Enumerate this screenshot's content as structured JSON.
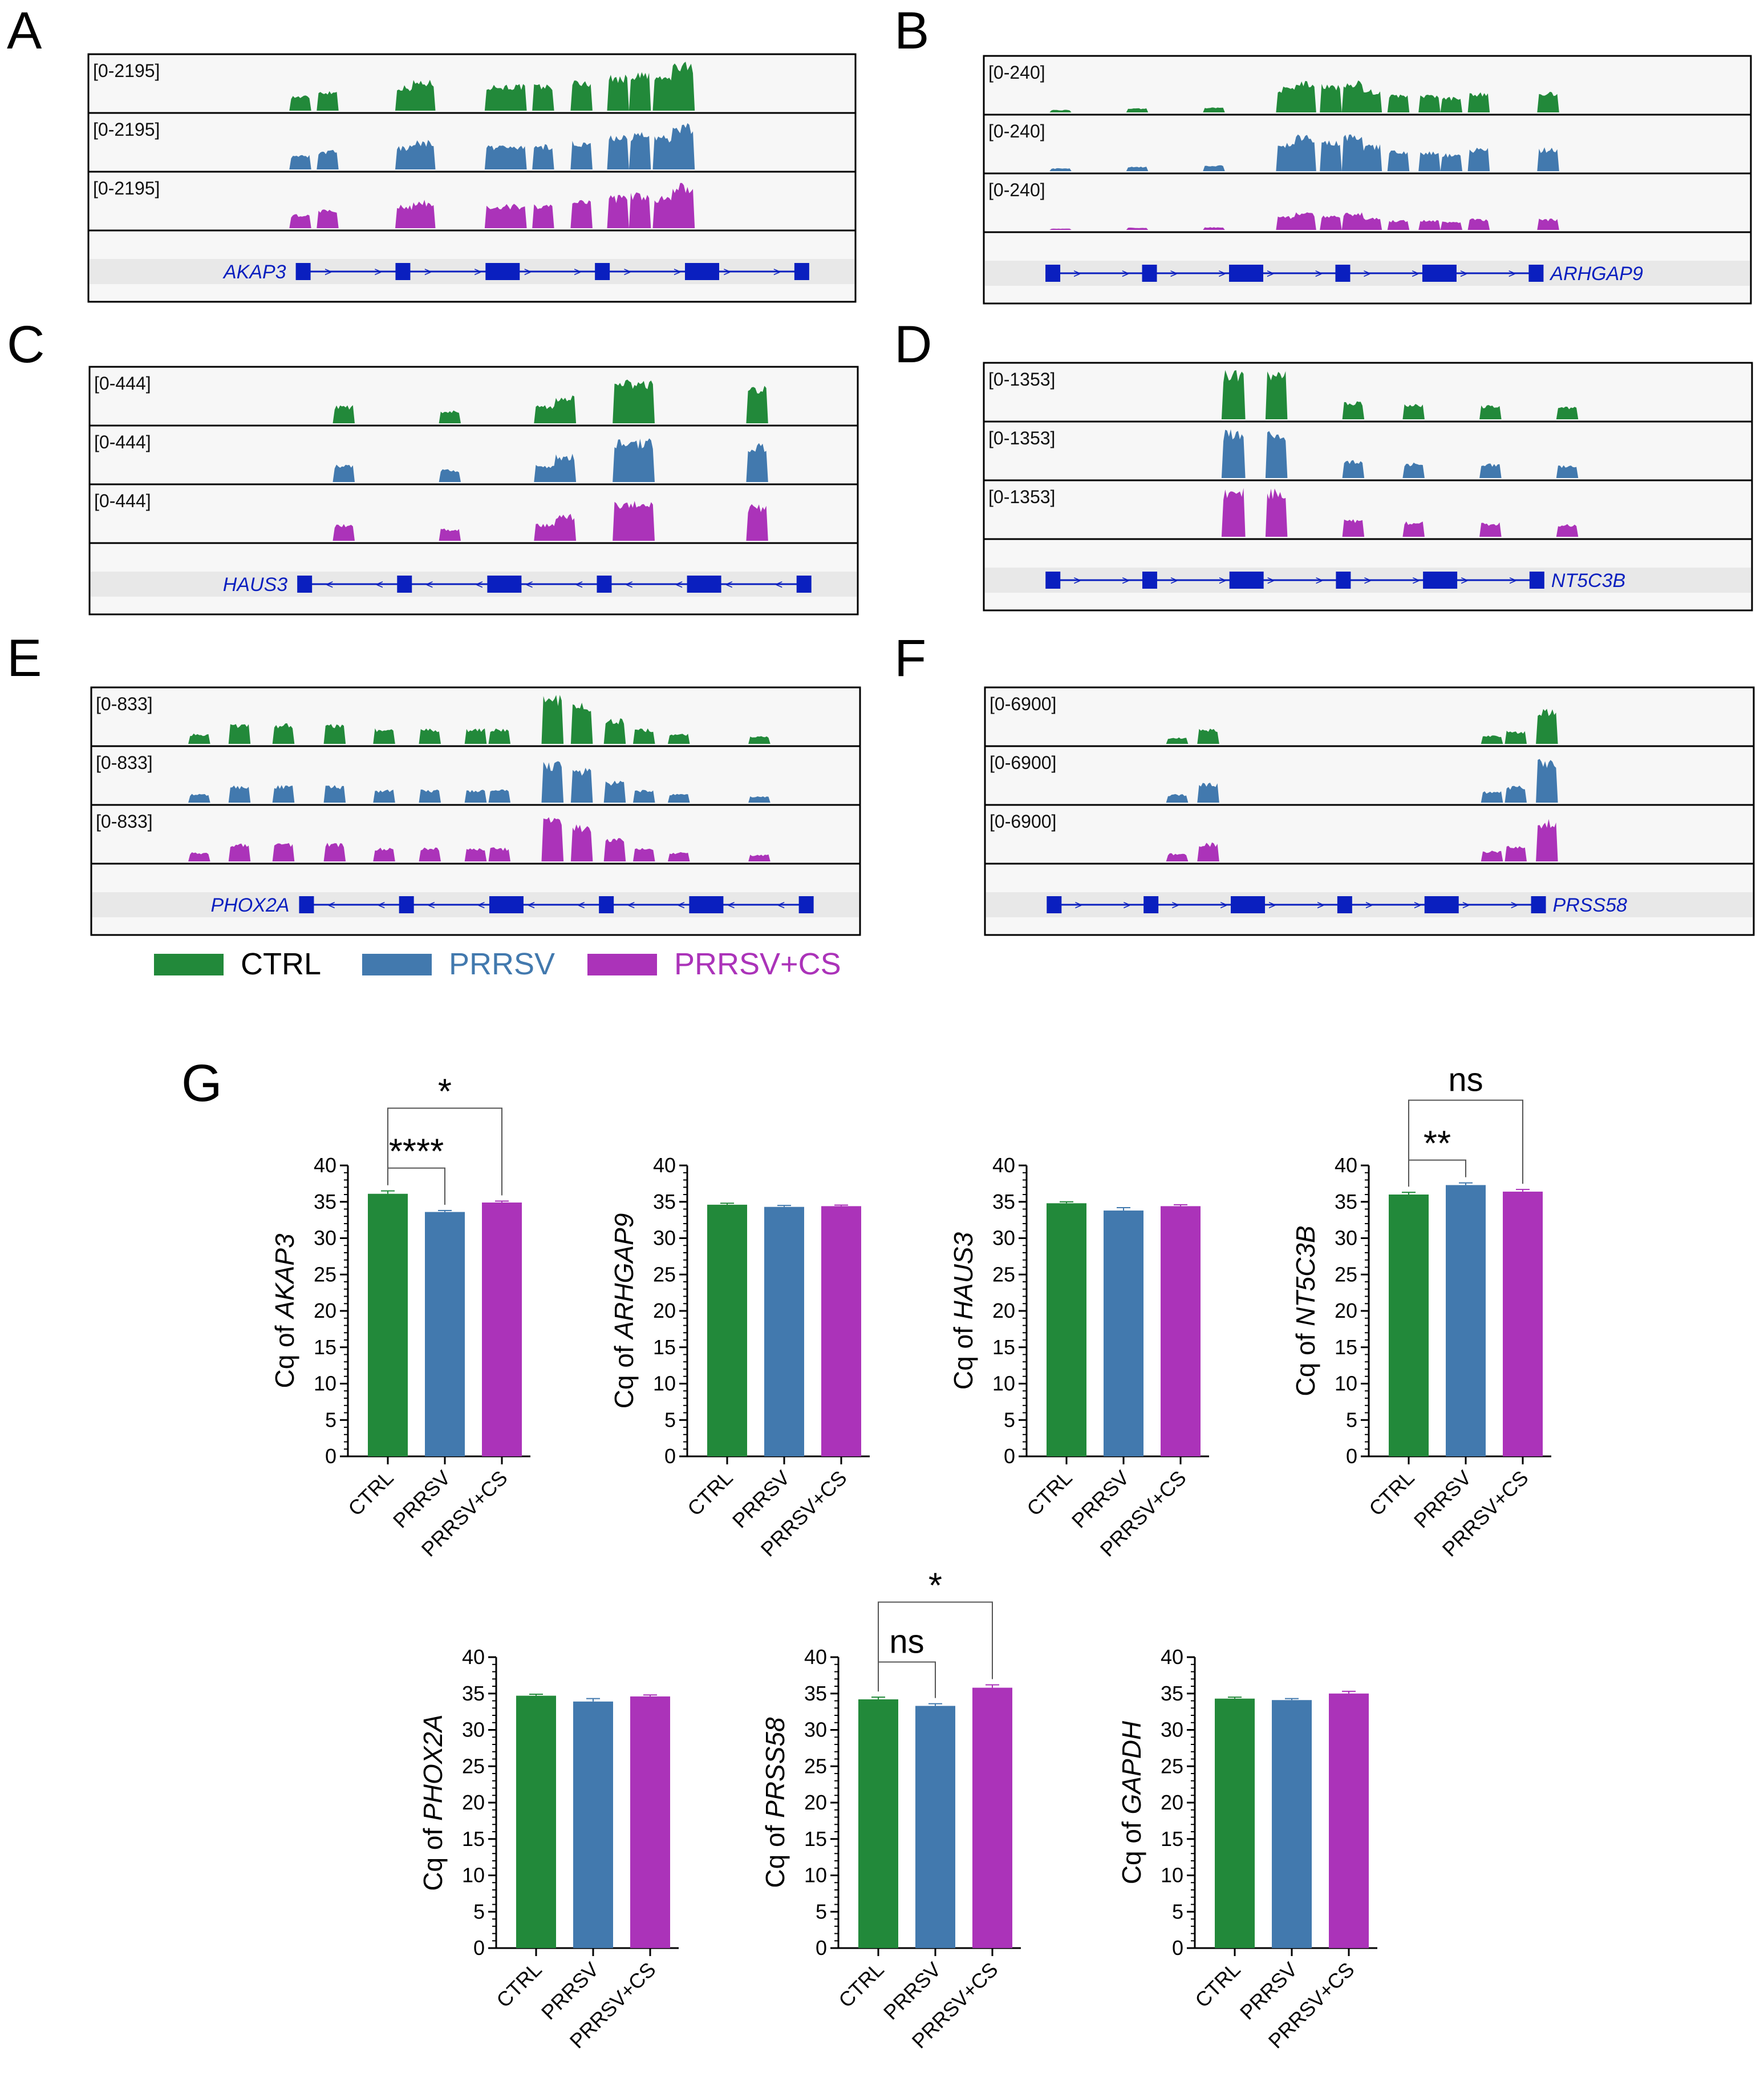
{
  "colors": {
    "CTRL": "#22893a",
    "PRRSV": "#4279ae",
    "PRRSV+CS": "#ab33b9",
    "gene": "#0a1fbf",
    "track_bg": "#f7f7f7",
    "gene_bg": "#e8e8e8"
  },
  "legend": [
    {
      "label": "CTRL",
      "color": "#22893a"
    },
    {
      "label": "PRRSV",
      "color": "#4279ae"
    },
    {
      "label": "PRRSV+CS",
      "color": "#ab33b9"
    }
  ],
  "chart_data": [
    {
      "panel": "A",
      "type": "area",
      "gene": "AKAP3",
      "range_label": "[0-2195]",
      "range": [
        0,
        2195
      ],
      "strand": "+",
      "gene_label_side": "left",
      "peaks": [
        [
          0.276,
          0.3
        ],
        [
          0.311,
          0.4
        ],
        [
          0.414,
          0.5
        ],
        [
          0.437,
          0.6
        ],
        [
          0.531,
          0.52
        ],
        [
          0.556,
          0.52
        ],
        [
          0.593,
          0.52
        ],
        [
          0.643,
          0.6
        ],
        [
          0.69,
          0.7
        ],
        [
          0.72,
          0.76
        ],
        [
          0.75,
          0.7
        ],
        [
          0.775,
          0.95
        ]
      ],
      "tracks": [
        {
          "sample": "CTRL",
          "label_text": "[0-2195]",
          "peak_scale": 1.0
        },
        {
          "sample": "PRRSV",
          "label_text": "[0-2195]",
          "peak_scale": 0.95
        },
        {
          "sample": "PRRSV+CS",
          "label_text": "[0-2195]",
          "peak_scale": 0.92
        }
      ]
    },
    {
      "panel": "B",
      "type": "area",
      "gene": "ARHGAP9",
      "range_label": "[0-240]",
      "range": [
        0,
        240
      ],
      "strand": "+",
      "gene_label_side": "right",
      "peaks": [
        [
          0.1,
          0.05
        ],
        [
          0.2,
          0.08
        ],
        [
          0.3,
          0.1
        ],
        [
          0.395,
          0.5
        ],
        [
          0.42,
          0.62
        ],
        [
          0.452,
          0.55
        ],
        [
          0.482,
          0.62
        ],
        [
          0.505,
          0.45
        ],
        [
          0.54,
          0.35
        ],
        [
          0.58,
          0.35
        ],
        [
          0.61,
          0.3
        ],
        [
          0.645,
          0.4
        ],
        [
          0.735,
          0.4
        ]
      ],
      "tracks": [
        {
          "sample": "CTRL",
          "label_text": "[0-240]",
          "peak_scale": 1.0
        },
        {
          "sample": "PRRSV",
          "label_text": "[0-240]",
          "peak_scale": 1.15
        },
        {
          "sample": "PRRSV+CS",
          "label_text": "[0-240]",
          "peak_scale": 0.55
        }
      ]
    },
    {
      "panel": "C",
      "type": "area",
      "gene": "HAUS3",
      "range_label": "[0-444]",
      "range": [
        0,
        444
      ],
      "strand": "-",
      "gene_label_side": "left",
      "peaks": [
        [
          0.331,
          0.35
        ],
        [
          0.468,
          0.25
        ],
        [
          0.594,
          0.35
        ],
        [
          0.619,
          0.55
        ],
        [
          0.696,
          0.85
        ],
        [
          0.721,
          0.85
        ],
        [
          0.87,
          0.75
        ]
      ],
      "tracks": [
        {
          "sample": "CTRL",
          "label_text": "[0-444]",
          "peak_scale": 1.0
        },
        {
          "sample": "PRRSV",
          "label_text": "[0-444]",
          "peak_scale": 1.0
        },
        {
          "sample": "PRRSV+CS",
          "label_text": "[0-444]",
          "peak_scale": 0.95
        }
      ]
    },
    {
      "panel": "D",
      "type": "area",
      "gene": "NT5C3B",
      "range_label": "[0-1353]",
      "range": [
        0,
        1353
      ],
      "strand": "+",
      "gene_label_side": "right",
      "peaks": [
        [
          0.325,
          0.95
        ],
        [
          0.38,
          0.95
        ],
        [
          0.48,
          0.35
        ],
        [
          0.56,
          0.3
        ],
        [
          0.66,
          0.28
        ],
        [
          0.76,
          0.25
        ]
      ],
      "tracks": [
        {
          "sample": "CTRL",
          "label_text": "[0-1353]",
          "peak_scale": 1.0
        },
        {
          "sample": "PRRSV",
          "label_text": "[0-1353]",
          "peak_scale": 1.0
        },
        {
          "sample": "PRRSV+CS",
          "label_text": "[0-1353]",
          "peak_scale": 1.0
        }
      ]
    },
    {
      "panel": "E",
      "type": "area",
      "gene": "PHOX2A",
      "range_label": "[0-833]",
      "range": [
        0,
        833
      ],
      "strand": "-",
      "gene_label_side": "left",
      "peaks": [
        [
          0.14,
          0.2
        ],
        [
          0.193,
          0.4
        ],
        [
          0.25,
          0.4
        ],
        [
          0.317,
          0.4
        ],
        [
          0.381,
          0.3
        ],
        [
          0.44,
          0.3
        ],
        [
          0.5,
          0.3
        ],
        [
          0.53,
          0.3
        ],
        [
          0.6,
          0.95
        ],
        [
          0.638,
          0.8
        ],
        [
          0.68,
          0.5
        ],
        [
          0.72,
          0.3
        ],
        [
          0.765,
          0.2
        ],
        [
          0.87,
          0.15
        ]
      ],
      "tracks": [
        {
          "sample": "CTRL",
          "label_text": "[0-833]",
          "peak_scale": 1.0
        },
        {
          "sample": "PRRSV",
          "label_text": "[0-833]",
          "peak_scale": 0.85
        },
        {
          "sample": "PRRSV+CS",
          "label_text": "[0-833]",
          "peak_scale": 0.9
        }
      ]
    },
    {
      "panel": "F",
      "type": "area",
      "gene": "PRSS58",
      "range_label": "[0-6900]",
      "range": [
        0,
        6900
      ],
      "strand": "+",
      "gene_label_side": "right",
      "peaks": [
        [
          0.25,
          0.15
        ],
        [
          0.29,
          0.35
        ],
        [
          0.66,
          0.2
        ],
        [
          0.69,
          0.3
        ],
        [
          0.73,
          0.8
        ]
      ],
      "tracks": [
        {
          "sample": "CTRL",
          "label_text": "[0-6900]",
          "peak_scale": 0.85
        },
        {
          "sample": "PRRSV",
          "label_text": "[0-6900]",
          "peak_scale": 1.1
        },
        {
          "sample": "PRRSV+CS",
          "label_text": "[0-6900]",
          "peak_scale": 1.05
        }
      ]
    },
    {
      "panel": "G",
      "type": "bar",
      "gene": "AKAP3",
      "ylabel_prefix": "Cq of ",
      "ylabel_gene": "AKAP3",
      "ylim": [
        0,
        40
      ],
      "yticks": [
        0,
        5,
        10,
        15,
        20,
        25,
        30,
        35,
        40
      ],
      "categories": [
        "CTRL",
        "PRRSV",
        "PRRSV+CS"
      ],
      "values": [
        36.1,
        33.6,
        34.9
      ],
      "errors": [
        0.4,
        0.2,
        0.2
      ],
      "comparisons": [
        {
          "from": 0,
          "to": 1,
          "label": "****",
          "level": 1
        },
        {
          "from": 0,
          "to": 2,
          "label": "*",
          "level": 2
        }
      ]
    },
    {
      "panel": "G",
      "type": "bar",
      "gene": "ARHGAP9",
      "ylabel_prefix": "Cq of ",
      "ylabel_gene": "ARHGAP9",
      "ylim": [
        0,
        40
      ],
      "yticks": [
        0,
        5,
        10,
        15,
        20,
        25,
        30,
        35,
        40
      ],
      "categories": [
        "CTRL",
        "PRRSV",
        "PRRSV+CS"
      ],
      "values": [
        34.6,
        34.3,
        34.4
      ],
      "errors": [
        0.2,
        0.2,
        0.15
      ],
      "comparisons": []
    },
    {
      "panel": "G",
      "type": "bar",
      "gene": "HAUS3",
      "ylabel_prefix": "Cq of ",
      "ylabel_gene": "HAUS3",
      "ylim": [
        0,
        40
      ],
      "yticks": [
        0,
        5,
        10,
        15,
        20,
        25,
        30,
        35,
        40
      ],
      "categories": [
        "CTRL",
        "PRRSV",
        "PRRSV+CS"
      ],
      "values": [
        34.8,
        33.8,
        34.4
      ],
      "errors": [
        0.2,
        0.4,
        0.2
      ],
      "comparisons": []
    },
    {
      "panel": "G",
      "type": "bar",
      "gene": "NT5C3B",
      "ylabel_prefix": "Cq of ",
      "ylabel_gene": "NT5C3B",
      "ylim": [
        0,
        40
      ],
      "yticks": [
        0,
        5,
        10,
        15,
        20,
        25,
        30,
        35,
        40
      ],
      "categories": [
        "CTRL",
        "PRRSV",
        "PRRSV+CS"
      ],
      "values": [
        36.0,
        37.3,
        36.4
      ],
      "errors": [
        0.3,
        0.3,
        0.3
      ],
      "comparisons": [
        {
          "from": 0,
          "to": 1,
          "label": "**",
          "level": 1
        },
        {
          "from": 0,
          "to": 2,
          "label": "ns",
          "level": 2
        }
      ]
    },
    {
      "panel": "G",
      "type": "bar",
      "gene": "PHOX2A",
      "ylabel_prefix": "Cq of ",
      "ylabel_gene": "PHOX2A",
      "ylim": [
        0,
        40
      ],
      "yticks": [
        0,
        5,
        10,
        15,
        20,
        25,
        30,
        35,
        40
      ],
      "categories": [
        "CTRL",
        "PRRSV",
        "PRRSV+CS"
      ],
      "values": [
        34.7,
        33.9,
        34.6
      ],
      "errors": [
        0.2,
        0.4,
        0.2
      ],
      "comparisons": []
    },
    {
      "panel": "G",
      "type": "bar",
      "gene": "PRSS58",
      "ylabel_prefix": "Cq of ",
      "ylabel_gene": "PRSS58",
      "ylim": [
        0,
        40
      ],
      "yticks": [
        0,
        5,
        10,
        15,
        20,
        25,
        30,
        35,
        40
      ],
      "categories": [
        "CTRL",
        "PRRSV",
        "PRRSV+CS"
      ],
      "values": [
        34.2,
        33.3,
        35.8
      ],
      "errors": [
        0.3,
        0.3,
        0.4
      ],
      "comparisons": [
        {
          "from": 0,
          "to": 1,
          "label": "ns",
          "level": 1
        },
        {
          "from": 0,
          "to": 2,
          "label": "*",
          "level": 2
        }
      ]
    },
    {
      "panel": "G",
      "type": "bar",
      "gene": "GAPDH",
      "ylabel_prefix": "Cq of ",
      "ylabel_gene": "GAPDH",
      "ylim": [
        0,
        40
      ],
      "yticks": [
        0,
        5,
        10,
        15,
        20,
        25,
        30,
        35,
        40
      ],
      "categories": [
        "CTRL",
        "PRRSV",
        "PRRSV+CS"
      ],
      "values": [
        34.3,
        34.1,
        35.0
      ],
      "errors": [
        0.2,
        0.2,
        0.3
      ],
      "comparisons": []
    }
  ],
  "panel_letters": [
    "A",
    "B",
    "C",
    "D",
    "E",
    "F",
    "G"
  ]
}
